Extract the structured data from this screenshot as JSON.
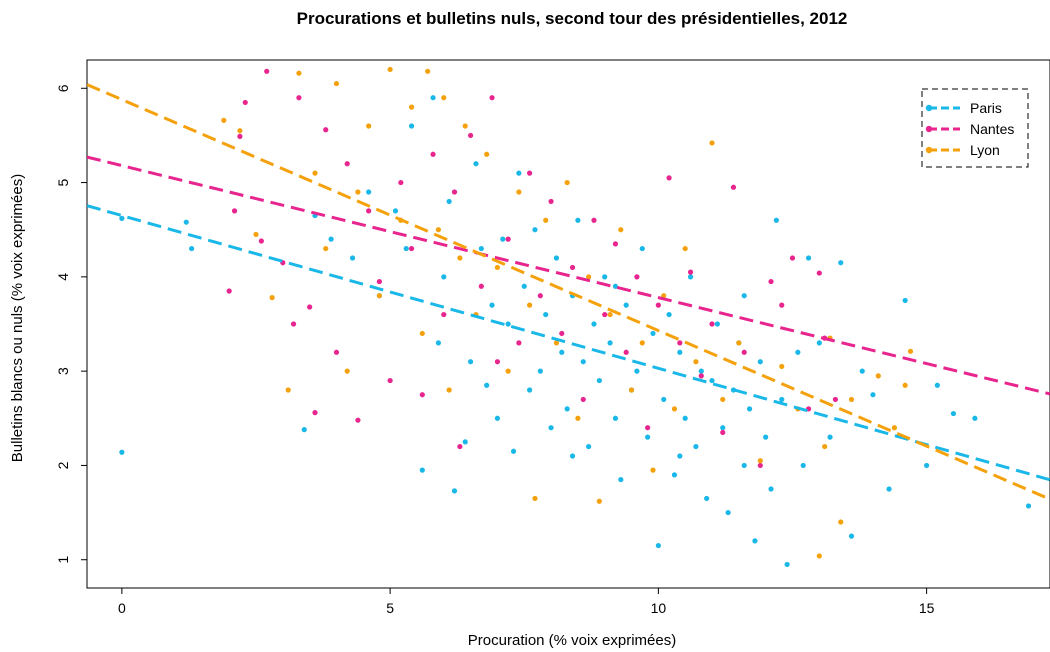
{
  "chart_data": {
    "type": "scatter",
    "title": "Procurations et bulletins nuls, second tour des présidentielles, 2012",
    "xlabel": "Procuration (% voix exprimées)",
    "ylabel": "Bulletins blancs ou nuls (% voix exprimées)",
    "xlim": [
      -0.65,
      17.3
    ],
    "ylim": [
      0.7,
      6.3
    ],
    "xticks": [
      0,
      5,
      10,
      15
    ],
    "yticks": [
      1,
      2,
      3,
      4,
      5,
      6
    ],
    "grid": false,
    "legend_position": "top-right",
    "legend_style": "dashed box",
    "series": [
      {
        "name": "Paris",
        "color": "#1AB8E8",
        "fit_line": {
          "intercept": 4.65,
          "slope": -0.162
        },
        "points": [
          [
            0,
            2.14
          ],
          [
            0,
            4.62
          ],
          [
            1.2,
            4.58
          ],
          [
            1.3,
            4.3
          ],
          [
            3.4,
            2.38
          ],
          [
            3.6,
            4.65
          ],
          [
            3.9,
            4.4
          ],
          [
            4.3,
            4.2
          ],
          [
            4.6,
            4.9
          ],
          [
            4.8,
            3.8
          ],
          [
            5.1,
            4.7
          ],
          [
            5.3,
            4.3
          ],
          [
            5.4,
            5.6
          ],
          [
            5.6,
            1.95
          ],
          [
            5.8,
            5.9
          ],
          [
            5.9,
            3.3
          ],
          [
            6.1,
            4.8
          ],
          [
            6.2,
            1.73
          ],
          [
            6.4,
            2.25
          ],
          [
            6.5,
            3.1
          ],
          [
            6.6,
            5.2
          ],
          [
            6.7,
            4.3
          ],
          [
            6.8,
            2.85
          ],
          [
            6.9,
            3.7
          ],
          [
            7.0,
            2.5
          ],
          [
            7.1,
            4.4
          ],
          [
            7.2,
            3.5
          ],
          [
            7.3,
            2.15
          ],
          [
            7.4,
            5.1
          ],
          [
            7.5,
            3.9
          ],
          [
            7.6,
            2.8
          ],
          [
            7.7,
            4.5
          ],
          [
            7.8,
            3.0
          ],
          [
            7.9,
            3.6
          ],
          [
            8.0,
            2.4
          ],
          [
            8.1,
            4.2
          ],
          [
            8.2,
            3.2
          ],
          [
            8.3,
            2.6
          ],
          [
            8.4,
            3.8
          ],
          [
            8.5,
            4.6
          ],
          [
            8.6,
            3.1
          ],
          [
            8.7,
            2.2
          ],
          [
            8.8,
            3.5
          ],
          [
            8.9,
            2.9
          ],
          [
            9.0,
            4.0
          ],
          [
            9.1,
            3.3
          ],
          [
            9.2,
            2.5
          ],
          [
            9.3,
            1.85
          ],
          [
            9.4,
            3.7
          ],
          [
            9.5,
            2.8
          ],
          [
            9.6,
            3.0
          ],
          [
            9.7,
            4.3
          ],
          [
            9.8,
            2.3
          ],
          [
            9.9,
            3.4
          ],
          [
            10.0,
            1.15
          ],
          [
            10.1,
            2.7
          ],
          [
            10.2,
            3.6
          ],
          [
            10.3,
            1.9
          ],
          [
            10.4,
            3.2
          ],
          [
            10.5,
            2.5
          ],
          [
            10.6,
            4.0
          ],
          [
            10.7,
            2.2
          ],
          [
            10.8,
            3.0
          ],
          [
            10.9,
            1.65
          ],
          [
            11.0,
            2.9
          ],
          [
            11.1,
            3.5
          ],
          [
            11.2,
            2.4
          ],
          [
            11.3,
            1.5
          ],
          [
            11.4,
            2.8
          ],
          [
            11.5,
            3.3
          ],
          [
            11.6,
            2.0
          ],
          [
            11.7,
            2.6
          ],
          [
            11.8,
            1.2
          ],
          [
            11.9,
            3.1
          ],
          [
            12.0,
            2.3
          ],
          [
            12.1,
            1.75
          ],
          [
            12.2,
            4.6
          ],
          [
            12.3,
            2.7
          ],
          [
            12.4,
            0.95
          ],
          [
            12.6,
            3.2
          ],
          [
            12.7,
            2.0
          ],
          [
            12.8,
            4.2
          ],
          [
            13.0,
            3.3
          ],
          [
            13.2,
            2.3
          ],
          [
            13.4,
            4.15
          ],
          [
            13.6,
            1.25
          ],
          [
            13.8,
            3.0
          ],
          [
            14.0,
            2.75
          ],
          [
            14.3,
            1.75
          ],
          [
            14.6,
            3.75
          ],
          [
            15.0,
            2.0
          ],
          [
            15.2,
            2.85
          ],
          [
            15.5,
            2.55
          ],
          [
            15.9,
            2.5
          ],
          [
            16.9,
            1.57
          ],
          [
            9.2,
            3.9
          ],
          [
            8.4,
            2.1
          ],
          [
            10.4,
            2.1
          ],
          [
            11.6,
            3.8
          ],
          [
            6.0,
            4.0
          ]
        ]
      },
      {
        "name": "Nantes",
        "color": "#E8248E",
        "fit_line": {
          "intercept": 5.18,
          "slope": -0.14
        },
        "points": [
          [
            2.0,
            3.85
          ],
          [
            2.1,
            4.7
          ],
          [
            2.2,
            5.49
          ],
          [
            2.3,
            5.85
          ],
          [
            2.6,
            4.38
          ],
          [
            2.7,
            6.18
          ],
          [
            3.0,
            4.15
          ],
          [
            3.2,
            3.5
          ],
          [
            3.3,
            5.9
          ],
          [
            3.5,
            3.68
          ],
          [
            3.6,
            2.56
          ],
          [
            3.8,
            5.56
          ],
          [
            4.0,
            3.2
          ],
          [
            4.2,
            5.2
          ],
          [
            4.4,
            2.48
          ],
          [
            4.6,
            4.7
          ],
          [
            4.8,
            3.95
          ],
          [
            5.0,
            2.9
          ],
          [
            5.2,
            5.0
          ],
          [
            5.4,
            4.3
          ],
          [
            5.6,
            2.75
          ],
          [
            5.8,
            5.3
          ],
          [
            6.0,
            3.6
          ],
          [
            6.2,
            4.9
          ],
          [
            6.3,
            2.2
          ],
          [
            6.5,
            5.5
          ],
          [
            6.7,
            3.9
          ],
          [
            6.9,
            5.9
          ],
          [
            7.0,
            3.1
          ],
          [
            7.2,
            4.4
          ],
          [
            7.4,
            3.3
          ],
          [
            7.6,
            5.1
          ],
          [
            7.8,
            3.8
          ],
          [
            8.0,
            4.8
          ],
          [
            8.2,
            3.4
          ],
          [
            8.4,
            4.1
          ],
          [
            8.6,
            2.7
          ],
          [
            8.8,
            4.6
          ],
          [
            9.0,
            3.6
          ],
          [
            9.2,
            4.35
          ],
          [
            9.4,
            3.2
          ],
          [
            9.6,
            4.0
          ],
          [
            9.8,
            2.4
          ],
          [
            10.0,
            3.7
          ],
          [
            10.2,
            5.05
          ],
          [
            10.4,
            3.3
          ],
          [
            10.6,
            4.05
          ],
          [
            10.8,
            2.95
          ],
          [
            11.0,
            3.5
          ],
          [
            11.2,
            2.35
          ],
          [
            11.4,
            4.95
          ],
          [
            11.6,
            3.2
          ],
          [
            11.9,
            2.0
          ],
          [
            12.1,
            3.95
          ],
          [
            12.3,
            3.7
          ],
          [
            12.5,
            4.2
          ],
          [
            12.8,
            2.6
          ],
          [
            13.0,
            4.04
          ],
          [
            13.1,
            3.35
          ],
          [
            13.3,
            2.7
          ]
        ]
      },
      {
        "name": "Lyon",
        "color": "#F5A10C",
        "fit_line": {
          "intercept": 5.88,
          "slope": -0.245
        },
        "points": [
          [
            1.9,
            5.66
          ],
          [
            2.2,
            5.55
          ],
          [
            2.5,
            4.45
          ],
          [
            2.8,
            3.78
          ],
          [
            3.1,
            2.8
          ],
          [
            3.3,
            6.16
          ],
          [
            3.6,
            5.1
          ],
          [
            3.8,
            4.3
          ],
          [
            4.0,
            6.05
          ],
          [
            4.2,
            3.0
          ],
          [
            4.4,
            4.9
          ],
          [
            4.6,
            5.6
          ],
          [
            4.8,
            3.8
          ],
          [
            5.0,
            6.2
          ],
          [
            5.2,
            4.6
          ],
          [
            5.4,
            5.8
          ],
          [
            5.6,
            3.4
          ],
          [
            5.7,
            6.18
          ],
          [
            5.9,
            4.5
          ],
          [
            6.0,
            5.9
          ],
          [
            6.1,
            2.8
          ],
          [
            6.3,
            4.2
          ],
          [
            6.4,
            5.6
          ],
          [
            6.6,
            3.6
          ],
          [
            6.8,
            5.3
          ],
          [
            7.0,
            4.1
          ],
          [
            7.2,
            3.0
          ],
          [
            7.4,
            4.9
          ],
          [
            7.6,
            3.7
          ],
          [
            7.7,
            1.65
          ],
          [
            7.9,
            4.6
          ],
          [
            8.1,
            3.3
          ],
          [
            8.3,
            5.0
          ],
          [
            8.5,
            2.5
          ],
          [
            8.7,
            4.0
          ],
          [
            8.9,
            1.62
          ],
          [
            9.1,
            3.6
          ],
          [
            9.3,
            4.5
          ],
          [
            9.5,
            2.8
          ],
          [
            9.7,
            3.3
          ],
          [
            9.9,
            1.95
          ],
          [
            10.1,
            3.8
          ],
          [
            10.3,
            2.6
          ],
          [
            10.5,
            4.3
          ],
          [
            10.7,
            3.1
          ],
          [
            11.0,
            5.42
          ],
          [
            11.2,
            2.7
          ],
          [
            11.5,
            3.3
          ],
          [
            11.9,
            2.05
          ],
          [
            12.3,
            3.05
          ],
          [
            12.6,
            2.6
          ],
          [
            13.0,
            1.04
          ],
          [
            13.1,
            2.2
          ],
          [
            13.2,
            3.35
          ],
          [
            13.4,
            1.4
          ],
          [
            13.6,
            2.7
          ],
          [
            14.1,
            2.95
          ],
          [
            14.4,
            2.4
          ],
          [
            14.6,
            2.85
          ],
          [
            14.7,
            3.21
          ]
        ]
      }
    ]
  }
}
